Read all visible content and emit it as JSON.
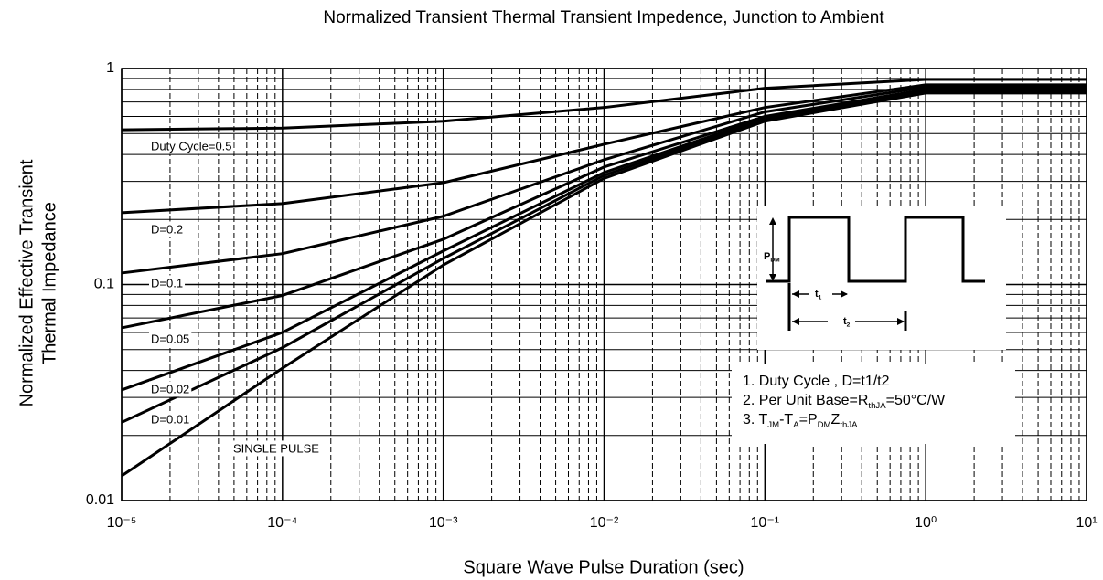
{
  "chart_data": {
    "type": "line",
    "title": "Normalized Transient Thermal Transient Impedence, Junction to Ambient",
    "x_label": "Square Wave Pulse Duration (sec)",
    "y_label": [
      "Normalized Effective Transient",
      "Thermal Impedance"
    ],
    "log_x": true,
    "log_y": true,
    "grid": true,
    "color": "#000000",
    "x": [
      1e-05,
      0.0001,
      0.001,
      0.01,
      0.1,
      1,
      10
    ],
    "series": [
      {
        "name": "Duty Cycle=0.5",
        "color": "#000000",
        "values": [
          0.52,
          0.53,
          0.57,
          0.66,
          0.81,
          0.89,
          0.89
        ]
      },
      {
        "name": "D=0.2",
        "color": "#000000",
        "values": [
          0.215,
          0.237,
          0.296,
          0.446,
          0.66,
          0.84,
          0.84
        ]
      },
      {
        "name": "D=0.1",
        "color": "#000000",
        "values": [
          0.113,
          0.139,
          0.207,
          0.378,
          0.63,
          0.82,
          0.82
        ]
      },
      {
        "name": "D=0.05",
        "color": "#000000",
        "values": [
          0.063,
          0.089,
          0.162,
          0.35,
          0.6,
          0.8,
          0.8
        ]
      },
      {
        "name": "D=0.02",
        "color": "#000000",
        "values": [
          0.0325,
          0.06,
          0.143,
          0.33,
          0.59,
          0.79,
          0.79
        ]
      },
      {
        "name": "D=0.01",
        "color": "#000000",
        "values": [
          0.023,
          0.051,
          0.132,
          0.32,
          0.58,
          0.78,
          0.78
        ]
      },
      {
        "name": "SINGLE PULSE",
        "color": "#000000",
        "values": [
          0.013,
          0.041,
          0.123,
          0.31,
          0.57,
          0.77,
          0.77
        ]
      }
    ],
    "xlim": [
      1e-05,
      10
    ],
    "xticks": [
      {
        "value": 1e-05,
        "label": "10⁻⁵"
      },
      {
        "value": 0.0001,
        "label": "10⁻⁴"
      },
      {
        "value": 0.001,
        "label": "10⁻³"
      },
      {
        "value": 0.01,
        "label": "10⁻²"
      },
      {
        "value": 0.1,
        "label": "10⁻¹"
      },
      {
        "value": 1,
        "label": "10⁰"
      },
      {
        "value": 10,
        "label": "10¹"
      }
    ],
    "ylim": [
      0.01,
      1
    ],
    "yticks": [
      0.01,
      0.1,
      1
    ],
    "notes": [
      [
        "1. Duty Cycle , D=t1/t2"
      ],
      [
        "2. Per Unit Base=R",
        "thJA",
        "=50°C/W"
      ],
      [
        "3. T",
        "JM",
        "-T",
        "A",
        "=P",
        "DM",
        "Z",
        "thJA"
      ]
    ],
    "inset": {
      "pdm": [
        "P",
        "DM"
      ],
      "t1": [
        "t",
        "1"
      ],
      "t2": [
        "t",
        "2"
      ]
    }
  }
}
